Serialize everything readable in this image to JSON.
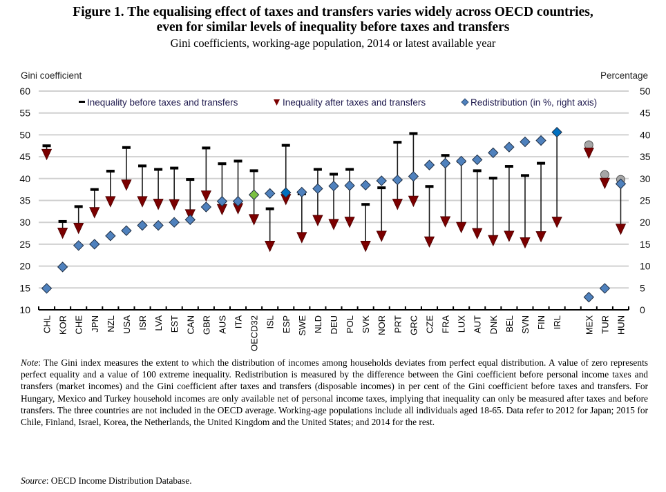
{
  "figure": {
    "title_line1": "Figure 1. The equalising effect of taxes and transfers varies widely across OECD countries,",
    "title_line2": "even for similar levels of inequality before taxes and transfers",
    "subtitle": "Gini coefficients, working-age population, 2014 or latest available year"
  },
  "note": {
    "label": "Note",
    "text": ": The Gini index measures the extent to which the distribution of incomes among households deviates from perfect equal distribution. A value of zero represents perfect equality and a value of 100 extreme inequality. Redistribution is measured by the difference between the Gini coefficient before personal income taxes and transfers (market incomes) and the Gini coefficient after taxes and transfers (disposable incomes) in per cent of the Gini coefficient before taxes and transfers. For Hungary, Mexico and Turkey household incomes are only available net of personal income taxes, implying that inequality can only be measured after taxes and before transfers. The three countries are not included in the OECD average. Working-age populations include all individuals aged 18-65. Data refer to 2012 for Japan; 2015 for Chile, Finland, Israel, Korea, the Netherlands, the United Kingdom and the United States; and 2014 for the rest."
  },
  "source": {
    "label": "Source",
    "text": ": OECD Income Distribution Database."
  },
  "colors": {
    "before_marker": "#000000",
    "after_marker": "#7b0000",
    "redistribution": "#4f81bd",
    "redistribution_highlight": "#0070c0",
    "oecd_average": "#7ac143",
    "after_taxes_before_transfers": "#a6a6a6",
    "gridline": "#d0d0d0"
  },
  "chart_data": {
    "type": "scatter",
    "title": "Figure 1. The equalising effect of taxes and transfers varies widely across OECD countries, even for similar levels of inequality before taxes and transfers",
    "subtitle": "Gini coefficients, working-age population, 2014 or latest available year",
    "ylabel": "Gini coefficient",
    "y2label": "Percentage",
    "ylim": [
      10,
      60
    ],
    "y2lim": [
      0,
      50
    ],
    "yticks": [
      10,
      15,
      20,
      25,
      30,
      35,
      40,
      45,
      50,
      55,
      60
    ],
    "y2ticks": [
      0,
      5,
      10,
      15,
      20,
      25,
      30,
      35,
      40,
      45,
      50
    ],
    "grid": true,
    "legend_position": "top",
    "legend": [
      {
        "key": "before",
        "label": "Inequality before taxes and transfers",
        "marker": "dash"
      },
      {
        "key": "after",
        "label": "Inequality after taxes and transfers",
        "marker": "triangle-down"
      },
      {
        "key": "redistribution",
        "label": "Redistribution (in %, right axis)",
        "marker": "diamond"
      }
    ],
    "categories": [
      "CHL",
      "KOR",
      "CHE",
      "JPN",
      "NZL",
      "USA",
      "ISR",
      "LVA",
      "EST",
      "CAN",
      "GBR",
      "AUS",
      "ITA",
      "OECD32",
      "ISL",
      "ESP",
      "SWE",
      "NLD",
      "DEU",
      "POL",
      "SVK",
      "NOR",
      "PRT",
      "GRC",
      "CZE",
      "FRA",
      "LUX",
      "AUT",
      "DNK",
      "BEL",
      "SVN",
      "FIN",
      "IRL",
      "",
      "MEX",
      "TUR",
      "HUN"
    ],
    "series": [
      {
        "name": "Inequality before taxes and transfers",
        "axis": "left",
        "values": [
          47.5,
          30.2,
          33.6,
          37.5,
          41.7,
          47.1,
          42.9,
          42.1,
          42.4,
          39.8,
          47.0,
          43.4,
          44.0,
          41.8,
          33.1,
          47.6,
          36.5,
          42.1,
          41.0,
          42.1,
          34.1,
          37.9,
          48.3,
          50.3,
          38.2,
          45.3,
          43.9,
          41.8,
          40.1,
          42.8,
          40.7,
          43.5,
          50.6,
          null,
          null,
          null,
          null
        ]
      },
      {
        "name": "Inequality after taxes and transfers",
        "axis": "left",
        "values": [
          45.6,
          27.6,
          28.7,
          32.3,
          34.8,
          38.6,
          34.8,
          34.2,
          34.1,
          31.8,
          36.1,
          33.0,
          33.2,
          30.7,
          24.6,
          35.3,
          26.6,
          30.5,
          29.6,
          30.1,
          24.6,
          26.9,
          34.2,
          34.9,
          25.6,
          30.2,
          28.9,
          27.5,
          25.9,
          26.9,
          25.4,
          26.8,
          30.1,
          null,
          45.9,
          39.0,
          28.5
        ]
      },
      {
        "name": "Inequality after taxes and before transfers (HUN, MEX, TUR)",
        "axis": "left",
        "values": [
          null,
          null,
          null,
          null,
          null,
          null,
          null,
          null,
          null,
          null,
          null,
          null,
          null,
          null,
          null,
          null,
          null,
          null,
          null,
          null,
          null,
          null,
          null,
          null,
          null,
          null,
          null,
          null,
          null,
          null,
          null,
          null,
          null,
          null,
          47.7,
          40.9,
          39.8
        ]
      },
      {
        "name": "Redistribution (in %, right axis)",
        "axis": "right",
        "values": [
          4.9,
          9.8,
          14.7,
          15.0,
          16.9,
          18.1,
          19.3,
          19.3,
          20.0,
          20.6,
          23.5,
          24.8,
          24.8,
          26.3,
          26.6,
          26.8,
          26.9,
          27.7,
          28.3,
          28.4,
          28.5,
          29.5,
          29.7,
          30.5,
          33.1,
          33.5,
          34.0,
          34.3,
          35.9,
          37.2,
          38.4,
          38.7,
          40.6,
          null,
          2.9,
          4.9,
          28.8
        ]
      }
    ],
    "highlight": {
      "OECD32": "oecd_average",
      "ESP": "redistribution_highlight",
      "IRL": "redistribution_highlight"
    }
  }
}
